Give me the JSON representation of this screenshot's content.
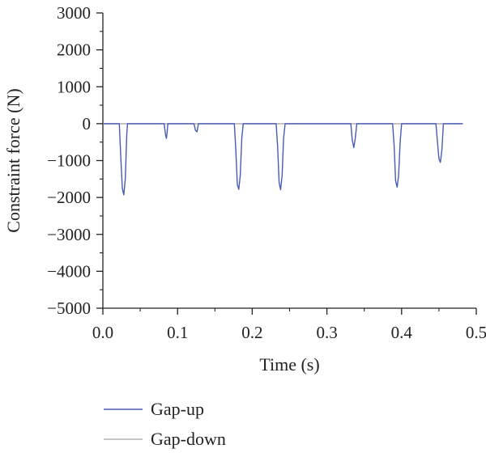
{
  "chart_data": {
    "type": "line",
    "xlabel": "Time (s)",
    "ylabel": "Constraint force (N)",
    "xlim": [
      0.0,
      0.5
    ],
    "ylim": [
      -5000,
      3000
    ],
    "x_ticks": [
      0.0,
      0.1,
      0.2,
      0.3,
      0.4,
      0.5
    ],
    "x_tick_labels": [
      "0.0",
      "0.1",
      "0.2",
      "0.3",
      "0.4",
      "0.5"
    ],
    "y_ticks": [
      3000,
      2000,
      1000,
      0,
      -1000,
      -2000,
      -3000,
      -4000,
      -5000
    ],
    "y_tick_labels": [
      "3000",
      "2000",
      "1000",
      "0",
      "−1000",
      "−2000",
      "−3000",
      "−4000",
      "−5000"
    ],
    "grid": false,
    "legend_position": "bottom-left, below plot",
    "series": [
      {
        "name": "Gap-up",
        "color": "#4a5bb5",
        "x": [
          0.0,
          0.022,
          0.024,
          0.026,
          0.028,
          0.03,
          0.032,
          0.033,
          0.082,
          0.084,
          0.085,
          0.086,
          0.087,
          0.122,
          0.124,
          0.126,
          0.128,
          0.176,
          0.178,
          0.18,
          0.182,
          0.184,
          0.186,
          0.188,
          0.232,
          0.234,
          0.236,
          0.238,
          0.24,
          0.242,
          0.244,
          0.332,
          0.334,
          0.336,
          0.338,
          0.34,
          0.388,
          0.39,
          0.392,
          0.394,
          0.396,
          0.398,
          0.4,
          0.446,
          0.448,
          0.45,
          0.452,
          0.454,
          0.456,
          0.482
        ],
        "y": [
          0,
          0,
          -900,
          -1750,
          -1930,
          -1500,
          -300,
          0,
          0,
          -300,
          -400,
          -250,
          0,
          0,
          -180,
          -220,
          0,
          0,
          -700,
          -1650,
          -1780,
          -1400,
          -400,
          0,
          0,
          -600,
          -1600,
          -1790,
          -1400,
          -400,
          0,
          0,
          -450,
          -650,
          -400,
          0,
          0,
          -600,
          -1550,
          -1720,
          -1400,
          -500,
          0,
          0,
          -500,
          -950,
          -1050,
          -700,
          0,
          0
        ]
      },
      {
        "name": "Gap-down",
        "color": "#b5b5b5",
        "x": [
          0.0,
          0.482
        ],
        "y": [
          0,
          0
        ]
      }
    ]
  }
}
